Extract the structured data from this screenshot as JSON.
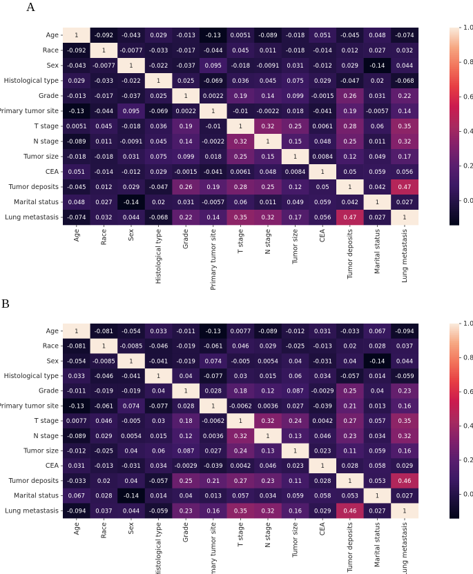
{
  "panel_labels": [
    "A",
    "B"
  ],
  "chart_data": [
    {
      "type": "heatmap",
      "panel": "A",
      "labels": [
        "Age",
        "Race",
        "Sex",
        "Histological type",
        "Grade",
        "Primary tumor site",
        "T stage",
        "N stage",
        "Tumor size",
        "CEA",
        "Tumor deposits",
        "Marital status",
        "Lung metastasis"
      ],
      "values": [
        [
          "1",
          "-0.092",
          "-0.043",
          "0.029",
          "-0.013",
          "-0.13",
          "0.0051",
          "-0.089",
          "-0.018",
          "0.051",
          "-0.045",
          "0.048",
          "-0.074"
        ],
        [
          "-0.092",
          "1",
          "-0.0077",
          "-0.033",
          "-0.017",
          "-0.044",
          "0.045",
          "0.011",
          "-0.018",
          "-0.014",
          "0.012",
          "0.027",
          "0.032"
        ],
        [
          "-0.043",
          "-0.0077",
          "1",
          "-0.022",
          "-0.037",
          "0.095",
          "-0.018",
          "-0.0091",
          "0.031",
          "-0.012",
          "0.029",
          "-0.14",
          "0.044"
        ],
        [
          "0.029",
          "-0.033",
          "-0.022",
          "1",
          "0.025",
          "-0.069",
          "0.036",
          "0.045",
          "0.075",
          "0.029",
          "-0.047",
          "0.02",
          "-0.068"
        ],
        [
          "-0.013",
          "-0.017",
          "-0.037",
          "0.025",
          "1",
          "0.0022",
          "0.19",
          "0.14",
          "0.099",
          "-0.0015",
          "0.26",
          "0.031",
          "0.22"
        ],
        [
          "-0.13",
          "-0.044",
          "0.095",
          "-0.069",
          "0.0022",
          "1",
          "-0.01",
          "-0.0022",
          "0.018",
          "-0.041",
          "0.19",
          "-0.0057",
          "0.14"
        ],
        [
          "0.0051",
          "0.045",
          "-0.018",
          "0.036",
          "0.19",
          "-0.01",
          "1",
          "0.32",
          "0.25",
          "0.0061",
          "0.28",
          "0.06",
          "0.35"
        ],
        [
          "-0.089",
          "0.011",
          "-0.0091",
          "0.045",
          "0.14",
          "-0.0022",
          "0.32",
          "1",
          "0.15",
          "0.048",
          "0.25",
          "0.011",
          "0.32"
        ],
        [
          "-0.018",
          "-0.018",
          "0.031",
          "0.075",
          "0.099",
          "0.018",
          "0.25",
          "0.15",
          "1",
          "0.0084",
          "0.12",
          "0.049",
          "0.17"
        ],
        [
          "0.051",
          "-0.014",
          "-0.012",
          "0.029",
          "-0.0015",
          "-0.041",
          "0.0061",
          "0.048",
          "0.0084",
          "1",
          "0.05",
          "0.059",
          "0.056"
        ],
        [
          "-0.045",
          "0.012",
          "0.029",
          "-0.047",
          "0.26",
          "0.19",
          "0.28",
          "0.25",
          "0.12",
          "0.05",
          "1",
          "0.042",
          "0.47"
        ],
        [
          "0.048",
          "0.027",
          "-0.14",
          "0.02",
          "0.031",
          "-0.0057",
          "0.06",
          "0.011",
          "0.049",
          "0.059",
          "0.042",
          "1",
          "0.027"
        ],
        [
          "-0.074",
          "0.032",
          "0.044",
          "-0.068",
          "0.22",
          "0.14",
          "0.35",
          "0.32",
          "0.17",
          "0.056",
          "0.47",
          "0.027",
          "1"
        ]
      ],
      "colorbar": {
        "range": [
          -0.14,
          1.0
        ],
        "ticks": [
          "1.0",
          "0.8",
          "0.6",
          "0.4",
          "0.2",
          "0.0"
        ]
      }
    },
    {
      "type": "heatmap",
      "panel": "B",
      "labels": [
        "Age",
        "Race",
        "Sex",
        "Histological type",
        "Grade",
        "Primary tumor site",
        "T stage",
        "N stage",
        "Tumor size",
        "CEA",
        "Tumor deposits",
        "Marital status",
        "Lung metastasis"
      ],
      "values": [
        [
          "1",
          "-0.081",
          "-0.054",
          "0.033",
          "-0.011",
          "-0.13",
          "0.0077",
          "-0.089",
          "-0.012",
          "0.031",
          "-0.033",
          "0.067",
          "-0.094"
        ],
        [
          "-0.081",
          "1",
          "-0.0085",
          "-0.046",
          "-0.019",
          "-0.061",
          "0.046",
          "0.029",
          "-0.025",
          "-0.013",
          "0.02",
          "0.028",
          "0.037"
        ],
        [
          "-0.054",
          "-0.0085",
          "1",
          "-0.041",
          "-0.019",
          "0.074",
          "-0.005",
          "0.0054",
          "0.04",
          "-0.031",
          "0.04",
          "-0.14",
          "0.044"
        ],
        [
          "0.033",
          "-0.046",
          "-0.041",
          "1",
          "0.04",
          "-0.077",
          "0.03",
          "0.015",
          "0.06",
          "0.034",
          "-0.057",
          "0.014",
          "-0.059"
        ],
        [
          "-0.011",
          "-0.019",
          "-0.019",
          "0.04",
          "1",
          "0.028",
          "0.18",
          "0.12",
          "0.087",
          "-0.0029",
          "0.25",
          "0.04",
          "0.23"
        ],
        [
          "-0.13",
          "-0.061",
          "0.074",
          "-0.077",
          "0.028",
          "1",
          "-0.0062",
          "0.0036",
          "0.027",
          "-0.039",
          "0.21",
          "0.013",
          "0.16"
        ],
        [
          "0.0077",
          "0.046",
          "-0.005",
          "0.03",
          "0.18",
          "-0.0062",
          "1",
          "0.32",
          "0.24",
          "0.0042",
          "0.27",
          "0.057",
          "0.35"
        ],
        [
          "-0.089",
          "0.029",
          "0.0054",
          "0.015",
          "0.12",
          "0.0036",
          "0.32",
          "1",
          "0.13",
          "0.046",
          "0.23",
          "0.034",
          "0.32"
        ],
        [
          "-0.012",
          "-0.025",
          "0.04",
          "0.06",
          "0.087",
          "0.027",
          "0.24",
          "0.13",
          "1",
          "0.023",
          "0.11",
          "0.059",
          "0.16"
        ],
        [
          "0.031",
          "-0.013",
          "-0.031",
          "0.034",
          "-0.0029",
          "-0.039",
          "0.0042",
          "0.046",
          "0.023",
          "1",
          "0.028",
          "0.058",
          "0.029"
        ],
        [
          "-0.033",
          "0.02",
          "0.04",
          "-0.057",
          "0.25",
          "0.21",
          "0.27",
          "0.23",
          "0.11",
          "0.028",
          "1",
          "0.053",
          "0.46"
        ],
        [
          "0.067",
          "0.028",
          "-0.14",
          "0.014",
          "0.04",
          "0.013",
          "0.057",
          "0.034",
          "0.059",
          "0.058",
          "0.053",
          "1",
          "0.027"
        ],
        [
          "-0.094",
          "0.037",
          "0.044",
          "-0.059",
          "0.23",
          "0.16",
          "0.35",
          "0.32",
          "0.16",
          "0.029",
          "0.46",
          "0.027",
          "1"
        ]
      ],
      "colorbar": {
        "range": [
          -0.14,
          1.0
        ],
        "ticks": [
          "1.0",
          "0.8",
          "0.6",
          "0.4",
          "0.2",
          "0.0"
        ]
      }
    }
  ]
}
